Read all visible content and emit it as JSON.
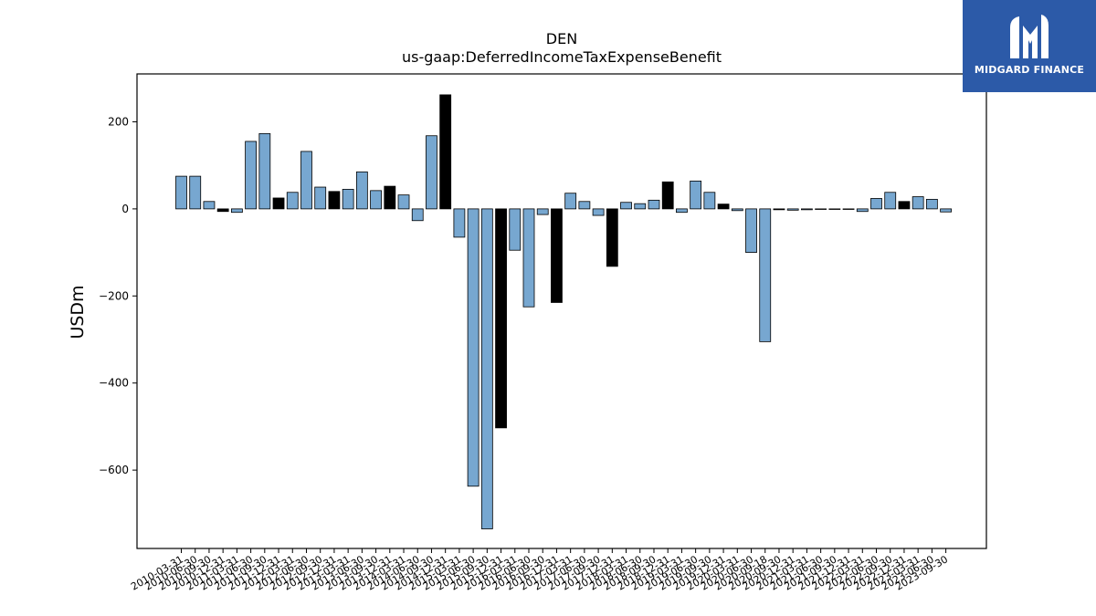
{
  "brand": {
    "name": "MIDGARD FINANCE",
    "logo_icon": "mf-monogram-icon",
    "color": "#2c5aa8"
  },
  "chart_data": {
    "type": "bar",
    "title": "DEN",
    "subtitle": "us-gaap:DeferredIncomeTaxExpenseBenefit",
    "ylabel": "USDm",
    "xlabel": "",
    "ylim": [
      -780,
      310
    ],
    "yticks": [
      200,
      0,
      -200,
      -400,
      -600
    ],
    "grid": false,
    "colors": {
      "default": "#77a7d0",
      "highlight": "#000000",
      "edge": "#000000"
    },
    "categories": [
      "2010-03-31",
      "2010-06-30",
      "2010-09-30",
      "2010-12-31",
      "2011-03-31",
      "2011-06-30",
      "2011-09-30",
      "2011-12-31",
      "2012-03-31",
      "2012-06-30",
      "2012-09-30",
      "2012-12-31",
      "2013-03-31",
      "2013-06-30",
      "2013-09-30",
      "2013-12-31",
      "2014-03-31",
      "2014-06-30",
      "2014-09-30",
      "2014-12-31",
      "2015-03-31",
      "2015-06-30",
      "2015-09-30",
      "2015-12-31",
      "2016-03-31",
      "2016-06-30",
      "2016-09-30",
      "2016-12-31",
      "2017-03-31",
      "2017-06-30",
      "2017-09-30",
      "2017-12-31",
      "2018-03-31",
      "2018-06-30",
      "2018-09-30",
      "2018-12-31",
      "2019-03-31",
      "2019-06-30",
      "2019-09-30",
      "2019-12-31",
      "2020-03-31",
      "2020-06-30",
      "2020-09-18",
      "2020-09-30",
      "2020-12-31",
      "2021-03-31",
      "2021-06-30",
      "2021-09-30",
      "2021-12-31",
      "2022-03-31",
      "2022-06-30",
      "2022-09-30",
      "2022-12-31",
      "2023-03-31",
      "2023-06-30",
      "2023-09-30"
    ],
    "values": [
      75,
      75,
      17,
      -6,
      -8,
      155,
      173,
      25,
      38,
      132,
      50,
      40,
      45,
      85,
      42,
      52,
      32,
      -27,
      168,
      262,
      -65,
      -637,
      -735,
      -503,
      -95,
      -225,
      -13,
      -215,
      36,
      17,
      -15,
      -132,
      15,
      12,
      20,
      62,
      -8,
      64,
      38,
      11,
      -4,
      -100,
      -305,
      -2,
      -3,
      -2,
      -1,
      -1,
      -1,
      -6,
      24,
      38,
      17,
      28,
      22,
      -7
    ],
    "highlight": [
      false,
      false,
      false,
      true,
      false,
      false,
      false,
      true,
      false,
      false,
      false,
      true,
      false,
      false,
      false,
      true,
      false,
      false,
      false,
      true,
      false,
      false,
      false,
      true,
      false,
      false,
      false,
      true,
      false,
      false,
      false,
      true,
      false,
      false,
      false,
      true,
      false,
      false,
      false,
      true,
      false,
      false,
      false,
      true,
      false,
      false,
      false,
      false,
      false,
      false,
      false,
      false,
      true,
      false,
      false,
      false
    ]
  }
}
